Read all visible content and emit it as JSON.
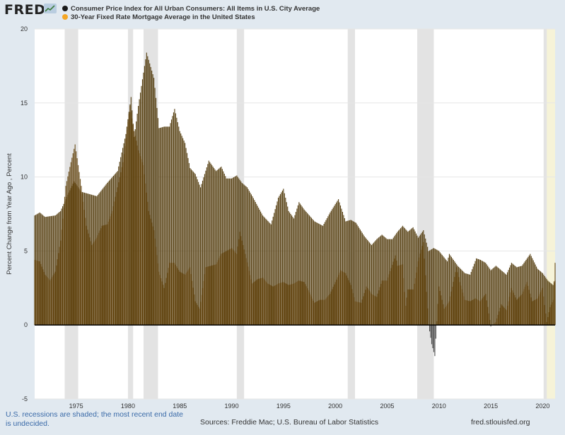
{
  "header": {
    "logo_text": "FRED"
  },
  "chart_data": {
    "type": "bar",
    "ylabel": "Percent Change from Year Ago , Percent",
    "ylim": [
      -5,
      20
    ],
    "yticks": [
      -5,
      0,
      5,
      10,
      15,
      20
    ],
    "xlim": [
      1971.0,
      2021.2
    ],
    "xticks": [
      1975,
      1980,
      1985,
      1990,
      1995,
      2000,
      2005,
      2010,
      2015,
      2020
    ],
    "grid": true,
    "legend_position": "top-left",
    "recessions": [
      [
        1973.9,
        1975.2
      ],
      [
        1980.0,
        1980.5
      ],
      [
        1981.5,
        1982.9
      ],
      [
        1990.5,
        1991.2
      ],
      [
        2001.2,
        2001.9
      ],
      [
        2007.9,
        2009.5
      ],
      [
        2020.1,
        2020.4
      ]
    ],
    "undecided_period": [
      2020.1,
      2021.2
    ],
    "series": [
      {
        "name": "Consumer Price Index for All Urban Consumers: All Items in U.S. City Average",
        "color": "#1a1a1a",
        "points": [
          [
            1971.0,
            4.4
          ],
          [
            1971.5,
            4.3
          ],
          [
            1972.0,
            3.4
          ],
          [
            1972.5,
            3.0
          ],
          [
            1973.0,
            3.6
          ],
          [
            1973.5,
            5.7
          ],
          [
            1974.0,
            9.4
          ],
          [
            1974.5,
            11.0
          ],
          [
            1974.9,
            12.2
          ],
          [
            1975.5,
            9.4
          ],
          [
            1976.0,
            6.7
          ],
          [
            1976.5,
            5.4
          ],
          [
            1977.0,
            5.9
          ],
          [
            1977.5,
            6.7
          ],
          [
            1978.0,
            6.8
          ],
          [
            1978.5,
            7.7
          ],
          [
            1979.0,
            9.3
          ],
          [
            1979.5,
            11.0
          ],
          [
            1980.2,
            14.8
          ],
          [
            1980.6,
            13.1
          ],
          [
            1981.0,
            11.8
          ],
          [
            1981.5,
            10.8
          ],
          [
            1982.0,
            7.7
          ],
          [
            1982.5,
            6.4
          ],
          [
            1983.0,
            3.6
          ],
          [
            1983.5,
            2.5
          ],
          [
            1984.0,
            4.2
          ],
          [
            1984.5,
            4.2
          ],
          [
            1985.0,
            3.6
          ],
          [
            1985.5,
            3.4
          ],
          [
            1986.0,
            3.9
          ],
          [
            1986.5,
            1.6
          ],
          [
            1986.9,
            1.1
          ],
          [
            1987.5,
            3.9
          ],
          [
            1988.0,
            4.0
          ],
          [
            1988.5,
            4.1
          ],
          [
            1989.0,
            4.8
          ],
          [
            1989.5,
            5.0
          ],
          [
            1990.0,
            5.2
          ],
          [
            1990.5,
            4.8
          ],
          [
            1990.8,
            6.3
          ],
          [
            1991.3,
            4.8
          ],
          [
            1992.0,
            2.8
          ],
          [
            1992.5,
            3.1
          ],
          [
            1993.0,
            3.2
          ],
          [
            1993.5,
            2.8
          ],
          [
            1994.0,
            2.6
          ],
          [
            1994.5,
            2.8
          ],
          [
            1995.0,
            2.9
          ],
          [
            1995.5,
            2.7
          ],
          [
            1996.0,
            2.8
          ],
          [
            1996.5,
            3.0
          ],
          [
            1997.0,
            2.9
          ],
          [
            1997.5,
            2.2
          ],
          [
            1998.0,
            1.5
          ],
          [
            1998.5,
            1.7
          ],
          [
            1999.0,
            1.7
          ],
          [
            1999.5,
            2.1
          ],
          [
            2000.0,
            2.9
          ],
          [
            2000.5,
            3.7
          ],
          [
            2001.0,
            3.5
          ],
          [
            2001.5,
            2.7
          ],
          [
            2001.9,
            1.6
          ],
          [
            2002.5,
            1.5
          ],
          [
            2003.0,
            2.6
          ],
          [
            2003.5,
            2.1
          ],
          [
            2004.0,
            1.9
          ],
          [
            2004.5,
            3.0
          ],
          [
            2005.0,
            3.0
          ],
          [
            2005.8,
            4.7
          ],
          [
            2006.0,
            4.0
          ],
          [
            2006.5,
            4.1
          ],
          [
            2006.8,
            1.3
          ],
          [
            2007.0,
            2.4
          ],
          [
            2007.5,
            2.4
          ],
          [
            2008.0,
            4.3
          ],
          [
            2008.5,
            5.6
          ],
          [
            2009.0,
            0.0
          ],
          [
            2009.3,
            -1.3
          ],
          [
            2009.6,
            -2.1
          ],
          [
            2010.0,
            2.6
          ],
          [
            2010.5,
            1.1
          ],
          [
            2011.0,
            1.6
          ],
          [
            2011.7,
            3.9
          ],
          [
            2012.0,
            2.9
          ],
          [
            2012.5,
            1.7
          ],
          [
            2013.0,
            1.6
          ],
          [
            2013.5,
            1.8
          ],
          [
            2014.0,
            1.6
          ],
          [
            2014.5,
            2.1
          ],
          [
            2015.0,
            -0.1
          ],
          [
            2015.5,
            0.2
          ],
          [
            2016.0,
            1.4
          ],
          [
            2016.5,
            1.0
          ],
          [
            2017.0,
            2.5
          ],
          [
            2017.5,
            1.7
          ],
          [
            2018.0,
            2.1
          ],
          [
            2018.5,
            2.9
          ],
          [
            2019.0,
            1.6
          ],
          [
            2019.5,
            1.8
          ],
          [
            2020.0,
            2.5
          ],
          [
            2020.4,
            0.2
          ],
          [
            2020.7,
            1.2
          ],
          [
            2021.0,
            1.7
          ],
          [
            2021.2,
            4.2
          ]
        ]
      },
      {
        "name": "30-Year Fixed Rate Mortgage Average in the United States",
        "color": "#f5a623",
        "points": [
          [
            1971.0,
            7.4
          ],
          [
            1971.5,
            7.6
          ],
          [
            1972.0,
            7.3
          ],
          [
            1973.0,
            7.4
          ],
          [
            1973.5,
            7.7
          ],
          [
            1974.0,
            8.5
          ],
          [
            1974.8,
            9.7
          ],
          [
            1975.5,
            9.0
          ],
          [
            1976.0,
            8.9
          ],
          [
            1977.0,
            8.7
          ],
          [
            1978.0,
            9.6
          ],
          [
            1979.0,
            10.4
          ],
          [
            1979.8,
            12.9
          ],
          [
            1980.3,
            15.4
          ],
          [
            1980.6,
            12.7
          ],
          [
            1981.0,
            14.8
          ],
          [
            1981.8,
            18.4
          ],
          [
            1982.5,
            16.7
          ],
          [
            1983.0,
            13.3
          ],
          [
            1983.5,
            13.4
          ],
          [
            1984.0,
            13.4
          ],
          [
            1984.5,
            14.6
          ],
          [
            1985.0,
            13.1
          ],
          [
            1985.5,
            12.3
          ],
          [
            1986.0,
            10.6
          ],
          [
            1986.5,
            10.2
          ],
          [
            1987.0,
            9.3
          ],
          [
            1987.8,
            11.1
          ],
          [
            1988.5,
            10.4
          ],
          [
            1989.0,
            10.7
          ],
          [
            1989.5,
            9.9
          ],
          [
            1990.0,
            9.9
          ],
          [
            1990.5,
            10.1
          ],
          [
            1991.0,
            9.6
          ],
          [
            1991.5,
            9.3
          ],
          [
            1992.0,
            8.7
          ],
          [
            1993.0,
            7.4
          ],
          [
            1993.8,
            6.8
          ],
          [
            1994.5,
            8.6
          ],
          [
            1995.0,
            9.2
          ],
          [
            1995.5,
            7.7
          ],
          [
            1996.0,
            7.2
          ],
          [
            1996.5,
            8.3
          ],
          [
            1997.0,
            7.8
          ],
          [
            1998.0,
            7.0
          ],
          [
            1998.8,
            6.7
          ],
          [
            1999.5,
            7.6
          ],
          [
            2000.3,
            8.5
          ],
          [
            2001.0,
            7.0
          ],
          [
            2001.5,
            7.1
          ],
          [
            2002.0,
            6.9
          ],
          [
            2002.8,
            6.0
          ],
          [
            2003.5,
            5.4
          ],
          [
            2004.0,
            5.8
          ],
          [
            2004.5,
            6.1
          ],
          [
            2005.0,
            5.8
          ],
          [
            2005.5,
            5.8
          ],
          [
            2006.0,
            6.3
          ],
          [
            2006.5,
            6.7
          ],
          [
            2007.0,
            6.3
          ],
          [
            2007.5,
            6.6
          ],
          [
            2008.0,
            5.9
          ],
          [
            2008.5,
            6.4
          ],
          [
            2009.0,
            5.0
          ],
          [
            2009.5,
            5.2
          ],
          [
            2010.0,
            5.0
          ],
          [
            2010.8,
            4.3
          ],
          [
            2011.0,
            4.8
          ],
          [
            2011.8,
            4.0
          ],
          [
            2012.5,
            3.5
          ],
          [
            2013.0,
            3.4
          ],
          [
            2013.6,
            4.5
          ],
          [
            2014.0,
            4.4
          ],
          [
            2014.5,
            4.2
          ],
          [
            2015.0,
            3.7
          ],
          [
            2015.5,
            4.0
          ],
          [
            2016.0,
            3.7
          ],
          [
            2016.5,
            3.4
          ],
          [
            2017.0,
            4.2
          ],
          [
            2017.5,
            3.9
          ],
          [
            2018.0,
            4.0
          ],
          [
            2018.8,
            4.8
          ],
          [
            2019.5,
            3.8
          ],
          [
            2020.0,
            3.5
          ],
          [
            2020.5,
            3.0
          ],
          [
            2021.0,
            2.7
          ],
          [
            2021.2,
            3.0
          ]
        ]
      }
    ]
  },
  "footer": {
    "note": "U.S. recessions are shaded; the most recent end date is undecided.",
    "sources": "Sources: Freddie Mac; U.S. Bureau of Labor Statistics",
    "site": "fred.stlouisfed.org"
  }
}
